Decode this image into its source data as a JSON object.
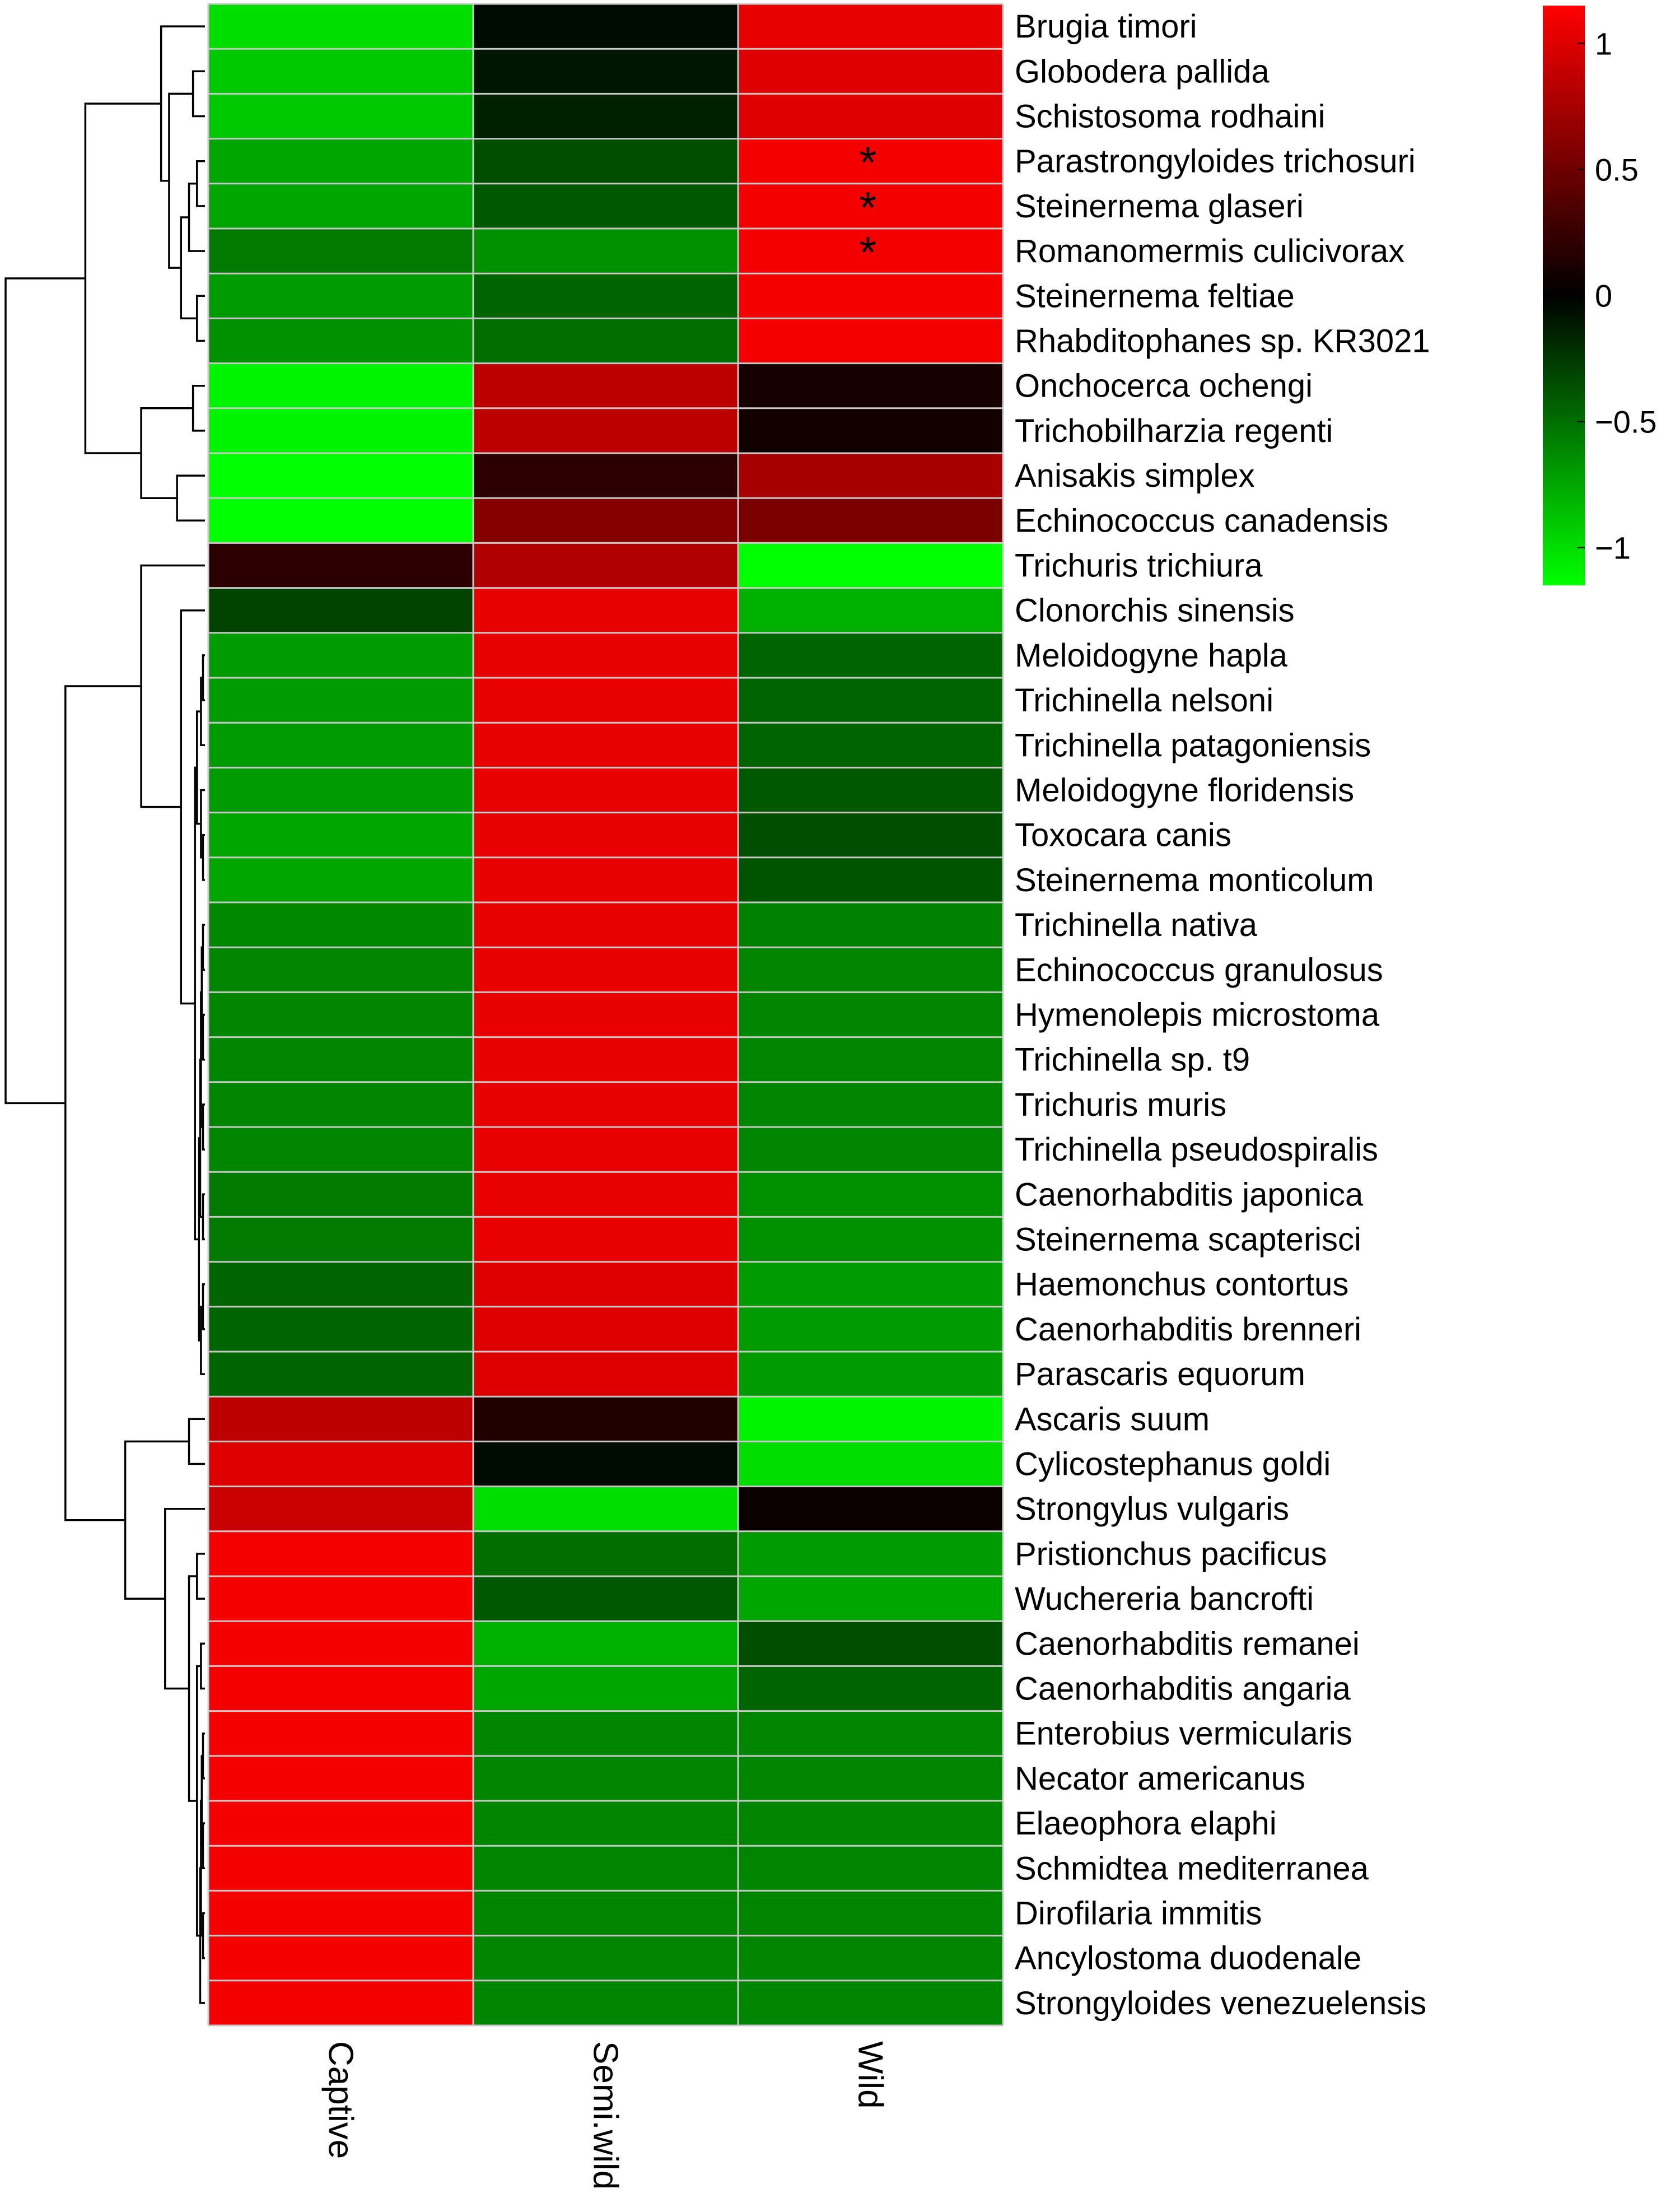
{
  "chart_data": {
    "type": "heatmap",
    "title": "",
    "columns": [
      "Captive",
      "Semi.wild",
      "Wild"
    ],
    "rows": [
      {
        "name": "Brugia timori",
        "values": [
          -1.0,
          -0.05,
          1.05
        ],
        "sig": [
          "",
          "",
          ""
        ]
      },
      {
        "name": "Globodera pallida",
        "values": [
          -0.9,
          -0.1,
          1.0
        ],
        "sig": [
          "",
          "",
          ""
        ]
      },
      {
        "name": "Schistosoma rodhaini",
        "values": [
          -0.9,
          -0.15,
          1.0
        ],
        "sig": [
          "",
          "",
          ""
        ]
      },
      {
        "name": "Parastrongyloides trichosuri",
        "values": [
          -0.75,
          -0.35,
          1.1
        ],
        "sig": [
          "",
          "",
          "*"
        ]
      },
      {
        "name": "Steinernema glaseri",
        "values": [
          -0.75,
          -0.4,
          1.1
        ],
        "sig": [
          "",
          "",
          "*"
        ]
      },
      {
        "name": "Romanomermis culicivorax",
        "values": [
          -0.55,
          -0.65,
          1.1
        ],
        "sig": [
          "",
          "",
          "*"
        ]
      },
      {
        "name": "Steinernema feltiae",
        "values": [
          -0.7,
          -0.45,
          1.1
        ],
        "sig": [
          "",
          "",
          ""
        ]
      },
      {
        "name": "Rhabditophanes sp. KR3021",
        "values": [
          -0.65,
          -0.5,
          1.1
        ],
        "sig": [
          "",
          "",
          ""
        ]
      },
      {
        "name": "Onchocerca ochengi",
        "values": [
          -1.1,
          0.85,
          0.1
        ],
        "sig": [
          "",
          "",
          ""
        ]
      },
      {
        "name": "Trichobilharzia regenti",
        "values": [
          -1.1,
          0.85,
          0.08
        ],
        "sig": [
          "",
          "",
          ""
        ]
      },
      {
        "name": "Anisakis simplex",
        "values": [
          -1.15,
          0.2,
          0.75
        ],
        "sig": [
          "",
          "",
          ""
        ]
      },
      {
        "name": "Echinococcus canadensis",
        "values": [
          -1.15,
          0.6,
          0.55
        ],
        "sig": [
          "",
          "",
          ""
        ]
      },
      {
        "name": "Trichuris trichiura",
        "values": [
          0.2,
          0.8,
          -1.15
        ],
        "sig": [
          "",
          "",
          ""
        ]
      },
      {
        "name": "Clonorchis sinensis",
        "values": [
          -0.3,
          1.05,
          -0.8
        ],
        "sig": [
          "",
          "",
          ""
        ]
      },
      {
        "name": "Meloidogyne hapla",
        "values": [
          -0.7,
          1.05,
          -0.45
        ],
        "sig": [
          "",
          "",
          ""
        ]
      },
      {
        "name": "Trichinella nelsoni",
        "values": [
          -0.7,
          1.05,
          -0.45
        ],
        "sig": [
          "",
          "",
          ""
        ]
      },
      {
        "name": "Trichinella patagoniensis",
        "values": [
          -0.7,
          1.05,
          -0.45
        ],
        "sig": [
          "",
          "",
          ""
        ]
      },
      {
        "name": "Meloidogyne floridensis",
        "values": [
          -0.7,
          1.05,
          -0.4
        ],
        "sig": [
          "",
          "",
          ""
        ]
      },
      {
        "name": "Toxocara canis",
        "values": [
          -0.75,
          1.05,
          -0.35
        ],
        "sig": [
          "",
          "",
          ""
        ]
      },
      {
        "name": "Steinernema monticolum",
        "values": [
          -0.75,
          1.05,
          -0.38
        ],
        "sig": [
          "",
          "",
          ""
        ]
      },
      {
        "name": "Trichinella nativa",
        "values": [
          -0.62,
          1.05,
          -0.58
        ],
        "sig": [
          "",
          "",
          ""
        ]
      },
      {
        "name": "Echinococcus granulosus",
        "values": [
          -0.6,
          1.05,
          -0.6
        ],
        "sig": [
          "",
          "",
          ""
        ]
      },
      {
        "name": "Hymenolepis microstoma",
        "values": [
          -0.6,
          1.05,
          -0.6
        ],
        "sig": [
          "",
          "",
          ""
        ]
      },
      {
        "name": "Trichinella sp. t9",
        "values": [
          -0.6,
          1.05,
          -0.6
        ],
        "sig": [
          "",
          "",
          ""
        ]
      },
      {
        "name": "Trichuris muris",
        "values": [
          -0.6,
          1.05,
          -0.6
        ],
        "sig": [
          "",
          "",
          ""
        ]
      },
      {
        "name": "Trichinella pseudospiralis",
        "values": [
          -0.6,
          1.05,
          -0.6
        ],
        "sig": [
          "",
          "",
          ""
        ]
      },
      {
        "name": "Caenorhabditis japonica",
        "values": [
          -0.55,
          1.05,
          -0.65
        ],
        "sig": [
          "",
          "",
          ""
        ]
      },
      {
        "name": "Steinernema scapterisci",
        "values": [
          -0.55,
          1.05,
          -0.65
        ],
        "sig": [
          "",
          "",
          ""
        ]
      },
      {
        "name": "Haemonchus contortus",
        "values": [
          -0.45,
          1.0,
          -0.7
        ],
        "sig": [
          "",
          "",
          ""
        ]
      },
      {
        "name": "Caenorhabditis brenneri",
        "values": [
          -0.45,
          1.0,
          -0.7
        ],
        "sig": [
          "",
          "",
          ""
        ]
      },
      {
        "name": "Parascaris equorum",
        "values": [
          -0.45,
          1.0,
          -0.7
        ],
        "sig": [
          "",
          "",
          ""
        ]
      },
      {
        "name": "Ascaris suum",
        "values": [
          0.85,
          0.15,
          -1.1
        ],
        "sig": [
          "",
          "",
          ""
        ]
      },
      {
        "name": "Cylicostephanus goldi",
        "values": [
          1.0,
          -0.05,
          -1.0
        ],
        "sig": [
          "",
          "",
          ""
        ]
      },
      {
        "name": "Strongylus vulgaris",
        "values": [
          0.9,
          -1.0,
          0.05
        ],
        "sig": [
          "",
          "",
          ""
        ]
      },
      {
        "name": "Pristionchus pacificus",
        "values": [
          1.1,
          -0.5,
          -0.7
        ],
        "sig": [
          "",
          "",
          ""
        ]
      },
      {
        "name": "Wuchereria bancrofti",
        "values": [
          1.1,
          -0.4,
          -0.75
        ],
        "sig": [
          "",
          "",
          ""
        ]
      },
      {
        "name": "Caenorhabditis remanei",
        "values": [
          1.1,
          -0.8,
          -0.35
        ],
        "sig": [
          "",
          "",
          ""
        ]
      },
      {
        "name": "Caenorhabditis angaria",
        "values": [
          1.1,
          -0.75,
          -0.45
        ],
        "sig": [
          "",
          "",
          ""
        ]
      },
      {
        "name": "Enterobius vermicularis",
        "values": [
          1.1,
          -0.6,
          -0.6
        ],
        "sig": [
          "",
          "",
          ""
        ]
      },
      {
        "name": "Necator americanus",
        "values": [
          1.1,
          -0.6,
          -0.6
        ],
        "sig": [
          "",
          "",
          ""
        ]
      },
      {
        "name": "Elaeophora elaphi",
        "values": [
          1.1,
          -0.6,
          -0.6
        ],
        "sig": [
          "",
          "",
          ""
        ]
      },
      {
        "name": "Schmidtea mediterranea",
        "values": [
          1.1,
          -0.6,
          -0.6
        ],
        "sig": [
          "",
          "",
          ""
        ]
      },
      {
        "name": "Dirofilaria immitis",
        "values": [
          1.1,
          -0.6,
          -0.6
        ],
        "sig": [
          "",
          "",
          ""
        ]
      },
      {
        "name": "Ancylostoma duodenale",
        "values": [
          1.1,
          -0.6,
          -0.6
        ],
        "sig": [
          "",
          "",
          ""
        ]
      },
      {
        "name": "Strongyloides venezuelensis",
        "values": [
          1.1,
          -0.6,
          -0.6
        ],
        "sig": [
          "",
          "",
          ""
        ]
      }
    ],
    "colorbar": {
      "min": -1.15,
      "max": 1.15,
      "ticks": [
        1,
        0.5,
        0,
        -0.5,
        -1
      ],
      "tick_labels": [
        "1",
        "0.5",
        "0",
        "−0.5",
        "−1"
      ],
      "colors": {
        "low": "#00ff00",
        "mid": "#000000",
        "high": "#ff0000"
      }
    },
    "dendrogram": {
      "leaf_order": "top-to-bottom",
      "merges": [
        {
          "a": "L3",
          "b": "L4",
          "h": 0.02
        },
        {
          "a": "M0",
          "b": "L5",
          "h": 0.04
        },
        {
          "a": "L6",
          "b": "L7",
          "h": 0.02
        },
        {
          "a": "M1",
          "b": "M2",
          "h": 0.06
        },
        {
          "a": "L1",
          "b": "L2",
          "h": 0.03
        },
        {
          "a": "M4",
          "b": "M3",
          "h": 0.09
        },
        {
          "a": "L0",
          "b": "M5",
          "h": 0.11
        },
        {
          "a": "L8",
          "b": "L9",
          "h": 0.03
        },
        {
          "a": "L10",
          "b": "L11",
          "h": 0.07
        },
        {
          "a": "M7",
          "b": "M8",
          "h": 0.16
        },
        {
          "a": "M6",
          "b": "M9",
          "h": 0.3
        },
        {
          "a": "L14",
          "b": "L15",
          "h": 0.005
        },
        {
          "a": "M11",
          "b": "L16",
          "h": 0.01
        },
        {
          "a": "L18",
          "b": "L19",
          "h": 0.005
        },
        {
          "a": "L17",
          "b": "M13",
          "h": 0.01
        },
        {
          "a": "M12",
          "b": "M14",
          "h": 0.02
        },
        {
          "a": "L20",
          "b": "L21",
          "h": 0.005
        },
        {
          "a": "L22",
          "b": "L23",
          "h": 0.005
        },
        {
          "a": "M16",
          "b": "M17",
          "h": 0.008
        },
        {
          "a": "L24",
          "b": "L25",
          "h": 0.005
        },
        {
          "a": "M18",
          "b": "M19",
          "h": 0.01
        },
        {
          "a": "L26",
          "b": "L27",
          "h": 0.005
        },
        {
          "a": "M20",
          "b": "M21",
          "h": 0.012
        },
        {
          "a": "L28",
          "b": "L29",
          "h": 0.005
        },
        {
          "a": "M23",
          "b": "L30",
          "h": 0.01
        },
        {
          "a": "M22",
          "b": "M24",
          "h": 0.015
        },
        {
          "a": "M15",
          "b": "M25",
          "h": 0.025
        },
        {
          "a": "L13",
          "b": "M26",
          "h": 0.06
        },
        {
          "a": "L12",
          "b": "M27",
          "h": 0.16
        },
        {
          "a": "L31",
          "b": "L32",
          "h": 0.04
        },
        {
          "a": "L34",
          "b": "L35",
          "h": 0.02
        },
        {
          "a": "L36",
          "b": "L37",
          "h": 0.01
        },
        {
          "a": "L38",
          "b": "L39",
          "h": 0.005
        },
        {
          "a": "L40",
          "b": "L41",
          "h": 0.005
        },
        {
          "a": "M32",
          "b": "M33",
          "h": 0.008
        },
        {
          "a": "L42",
          "b": "L43",
          "h": 0.005
        },
        {
          "a": "M34",
          "b": "M35",
          "h": 0.01
        },
        {
          "a": "M36",
          "b": "L44",
          "h": 0.012
        },
        {
          "a": "M31",
          "b": "M37",
          "h": 0.02
        },
        {
          "a": "M30",
          "b": "M38",
          "h": 0.04
        },
        {
          "a": "L33",
          "b": "M39",
          "h": 0.1
        },
        {
          "a": "M29",
          "b": "M40",
          "h": 0.2
        },
        {
          "a": "M28",
          "b": "M41",
          "h": 0.35
        },
        {
          "a": "M10",
          "b": "M42",
          "h": 0.5
        }
      ]
    }
  }
}
